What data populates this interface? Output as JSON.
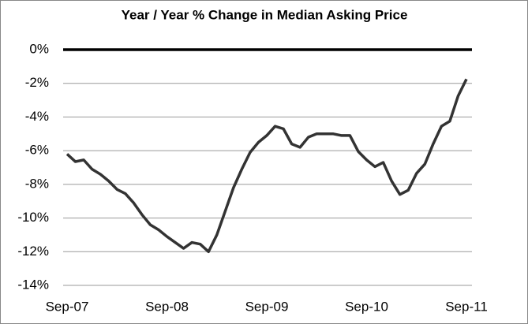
{
  "chart_data": {
    "type": "line",
    "title": "Year / Year % Change in Median Asking Price",
    "categories": [
      "Sep-07",
      null,
      null,
      null,
      null,
      null,
      null,
      null,
      null,
      null,
      null,
      null,
      "Sep-08",
      null,
      null,
      null,
      null,
      null,
      null,
      null,
      null,
      null,
      null,
      null,
      "Sep-09",
      null,
      null,
      null,
      null,
      null,
      null,
      null,
      null,
      null,
      null,
      null,
      "Sep-10",
      null,
      null,
      null,
      null,
      null,
      null,
      null,
      null,
      null,
      null,
      null,
      "Sep-11"
    ],
    "series": [
      {
        "name": "Y/Y % change",
        "color": "#333333",
        "values": [
          -6.2,
          -6.65,
          -6.55,
          -7.1,
          -7.4,
          -7.8,
          -8.3,
          -8.55,
          -9.1,
          -9.8,
          -10.4,
          -10.7,
          -11.1,
          -11.45,
          -11.8,
          -11.45,
          -11.55,
          -12.0,
          -11.0,
          -9.6,
          -8.2,
          -7.1,
          -6.1,
          -5.5,
          -5.1,
          -4.55,
          -4.7,
          -5.6,
          -5.8,
          -5.2,
          -5.0,
          -5.0,
          -5.0,
          -5.1,
          -5.1,
          -6.05,
          -6.55,
          -6.95,
          -6.7,
          -7.8,
          -8.6,
          -8.35,
          -7.35,
          -6.8,
          -5.6,
          -4.55,
          -4.25,
          -2.75,
          -1.75
        ]
      }
    ],
    "ylim": [
      -14,
      0
    ],
    "yticks": [
      {
        "value": 0,
        "label": "0%"
      },
      {
        "value": -2,
        "label": "-2%"
      },
      {
        "value": -4,
        "label": "-4%"
      },
      {
        "value": -6,
        "label": "-6%"
      },
      {
        "value": -8,
        "label": "-8%"
      },
      {
        "value": -10,
        "label": "-10%"
      },
      {
        "value": -12,
        "label": "-12%"
      },
      {
        "value": -14,
        "label": "-14%"
      }
    ],
    "grid": true
  }
}
